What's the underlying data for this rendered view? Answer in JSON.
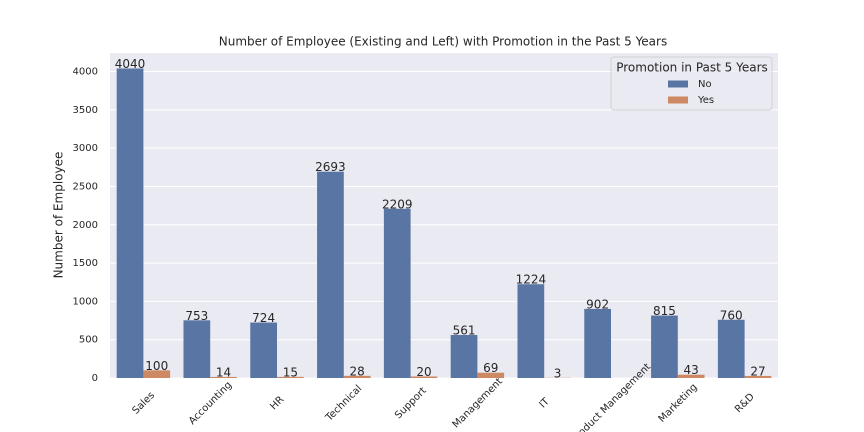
{
  "chart_data": {
    "type": "bar",
    "title": "Number of Employee (Existing and Left) with Promotion in the Past 5 Years",
    "y_label": "Number of Employee",
    "categories": [
      "Sales",
      "Accounting",
      "HR",
      "Technical",
      "Support",
      "Management",
      "IT",
      "Product Management",
      "Marketing",
      "R&D"
    ],
    "series": [
      {
        "name": "No",
        "color": "#5975a4",
        "values": [
          4040,
          753,
          724,
          2693,
          2209,
          561,
          1224,
          902,
          815,
          760
        ]
      },
      {
        "name": "Yes",
        "color": "#cc8963",
        "values": [
          100,
          14,
          15,
          28,
          20,
          69,
          3,
          null,
          43,
          27
        ]
      }
    ],
    "legend_title": "Promotion in Past 5 Years",
    "legend": "upper right",
    "ylim": [
      0,
      4242
    ],
    "yticks": [
      0,
      500,
      1000,
      1500,
      2000,
      2500,
      3000,
      3500,
      4000
    ],
    "grid": true
  }
}
